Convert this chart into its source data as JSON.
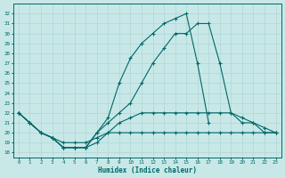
{
  "xlabel": "Humidex (Indice chaleur)",
  "bg_color": "#c8e8e8",
  "grid_color": "#b0d4d4",
  "line_color": "#006868",
  "xlim": [
    -0.5,
    23.5
  ],
  "ylim": [
    17.5,
    33.0
  ],
  "yticks": [
    18,
    19,
    20,
    21,
    22,
    23,
    24,
    25,
    26,
    27,
    28,
    29,
    30,
    31,
    32
  ],
  "xticks": [
    0,
    1,
    2,
    3,
    4,
    5,
    6,
    7,
    8,
    9,
    10,
    11,
    12,
    13,
    14,
    15,
    16,
    17,
    18,
    19,
    20,
    21,
    22,
    23
  ],
  "series": [
    {
      "x": [
        0,
        1,
        2,
        3,
        4,
        5,
        6,
        7,
        8,
        9,
        10,
        11,
        12,
        13,
        14,
        15,
        16,
        17,
        18,
        19,
        20,
        21,
        22,
        23
      ],
      "y": [
        22,
        21,
        20,
        19.5,
        19,
        19,
        19,
        19.5,
        20,
        20,
        20,
        20,
        20,
        20,
        20,
        20,
        20,
        20,
        20,
        20,
        20,
        20,
        20,
        20
      ]
    },
    {
      "x": [
        0,
        1,
        2,
        3,
        4,
        5,
        6,
        7,
        8,
        9,
        10,
        11,
        12,
        13,
        14,
        15,
        16,
        17,
        18,
        19,
        20,
        21,
        22,
        23
      ],
      "y": [
        22,
        21,
        20,
        19.5,
        18.5,
        18.5,
        18.5,
        19,
        20,
        21,
        21.5,
        22,
        22,
        22,
        22,
        22,
        22,
        22,
        22,
        22,
        21,
        21,
        20,
        20
      ]
    },
    {
      "x": [
        0,
        1,
        2,
        3,
        4,
        5,
        6,
        7,
        8,
        9,
        10,
        11,
        12,
        13,
        14,
        15,
        16,
        17,
        18,
        19,
        20,
        21,
        22,
        23
      ],
      "y": [
        22,
        21,
        20,
        19.5,
        18.5,
        18.5,
        18.5,
        20,
        21,
        22,
        23,
        25,
        27,
        28.5,
        30,
        30,
        31,
        31,
        27,
        22,
        21.5,
        21,
        20.5,
        20
      ]
    },
    {
      "x": [
        0,
        1,
        2,
        3,
        4,
        5,
        6,
        7,
        8,
        9,
        10,
        11,
        12,
        13,
        14,
        15,
        16,
        17
      ],
      "y": [
        22,
        21,
        20,
        19.5,
        18.5,
        18.5,
        18.5,
        20,
        21.5,
        25,
        27.5,
        29,
        30,
        31,
        31.5,
        32,
        27,
        21
      ]
    }
  ]
}
